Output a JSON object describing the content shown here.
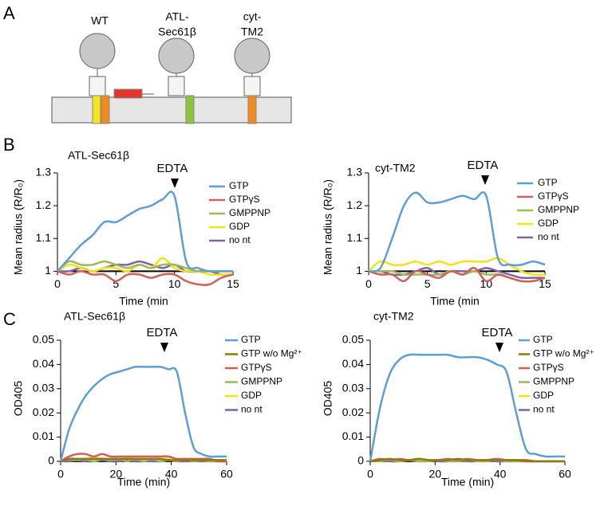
{
  "panel_labels": [
    "A",
    "B",
    "C"
  ],
  "diagram": {
    "labels": [
      [
        "WT"
      ],
      [
        "ATL-",
        "Sec61β"
      ],
      [
        "cyt-",
        "TM2"
      ]
    ]
  },
  "chart_data": [
    {
      "type": "line",
      "title": "ATL-Sec61β",
      "annotation": "EDTA",
      "xlabel": "Time (min",
      "ylabel": "Mean radius (R/R₀)",
      "x": [
        0,
        1,
        2,
        3,
        4,
        5,
        6,
        7,
        8,
        9,
        10,
        11,
        12,
        13,
        14,
        15
      ],
      "xlim": [
        0,
        15
      ],
      "xticks": [
        0,
        5,
        10,
        15
      ],
      "ylim": [
        0.95,
        1.3
      ],
      "yticks": [
        1,
        1.1,
        1.2,
        1.3
      ],
      "series": [
        {
          "name": "GTP",
          "color": "#5f9ed1",
          "values": [
            1,
            1.04,
            1.08,
            1.11,
            1.15,
            1.15,
            1.17,
            1.19,
            1.2,
            1.22,
            1.23,
            1.03,
            1.01,
            1,
            1,
            1
          ]
        },
        {
          "name": "GTPγS",
          "color": "#d0605a",
          "values": [
            1,
            0.99,
            1,
            0.99,
            0.99,
            0.97,
            0.99,
            0.99,
            0.98,
            0.99,
            0.99,
            0.97,
            0.96,
            0.96,
            0.98,
            0.99
          ]
        },
        {
          "name": "GMPPNP",
          "color": "#9bbb59",
          "values": [
            1,
            1.03,
            1.02,
            1.02,
            1.03,
            1.02,
            1.01,
            1.02,
            1.01,
            1.02,
            1.02,
            1.01,
            1,
            1,
            1,
            1
          ]
        },
        {
          "name": "GDP",
          "color": "#f2e21a",
          "values": [
            1,
            1.02,
            1.01,
            1,
            1.01,
            1.01,
            1,
            1.02,
            1.01,
            1.04,
            1.01,
            1,
            1,
            0.99,
            0.99,
            0.99
          ]
        },
        {
          "name": "no nt",
          "color": "#8064a2",
          "values": [
            1,
            1,
            1.01,
            1,
            1.01,
            1.02,
            1.02,
            1.03,
            1.02,
            1.01,
            1.02,
            1,
            1,
            1,
            0.99,
            0.99
          ]
        }
      ]
    },
    {
      "type": "line",
      "title": "cyt-TM2",
      "annotation": "EDTA",
      "xlabel": "Time (min",
      "ylabel": "Mean radius (R/R₀)",
      "x": [
        0,
        1,
        2,
        3,
        4,
        5,
        6,
        7,
        8,
        9,
        10,
        11,
        12,
        13,
        14,
        15
      ],
      "xlim": [
        0,
        15
      ],
      "xticks": [
        0,
        5,
        10,
        15
      ],
      "ylim": [
        0.95,
        1.3
      ],
      "yticks": [
        1,
        1.1,
        1.2,
        1.3
      ],
      "series": [
        {
          "name": "GTP",
          "color": "#5f9ed1",
          "values": [
            1,
            1.01,
            1.1,
            1.2,
            1.24,
            1.21,
            1.21,
            1.22,
            1.23,
            1.22,
            1.23,
            1.04,
            1.02,
            1.02,
            1.03,
            1.02
          ]
        },
        {
          "name": "GTPγS",
          "color": "#d0605a",
          "values": [
            1,
            0.99,
            0.99,
            0.97,
            1,
            0.99,
            0.98,
            1,
            0.99,
            1.01,
            0.97,
            0.99,
            0.98,
            0.97,
            0.97,
            0.98
          ]
        },
        {
          "name": "GMPPNP",
          "color": "#9bbb59",
          "values": [
            1,
            1,
            1,
            0.99,
            0.99,
            0.99,
            0.99,
            1,
            0.99,
            1,
            0.99,
            0.99,
            0.98,
            0.97,
            0.97,
            0.98
          ]
        },
        {
          "name": "GDP",
          "color": "#f2e21a",
          "values": [
            1,
            1.03,
            1.02,
            1.02,
            1.03,
            1.02,
            1.03,
            1.02,
            1.03,
            1.03,
            1.03,
            1.04,
            1.02,
            1,
            0.99,
            0.99
          ]
        },
        {
          "name": "no nt",
          "color": "#8064a2",
          "values": [
            1,
            1,
            0.99,
            0.99,
            1,
            1.01,
            0.99,
            1,
            1,
            1,
            1.01,
            1,
            0.99,
            0.98,
            0.98,
            0.98
          ]
        }
      ]
    },
    {
      "type": "line",
      "title": "ATL-Sec61β",
      "annotation": "EDTA",
      "xlabel": "Time (min)",
      "ylabel": "OD405",
      "x": [
        0,
        3,
        6,
        9,
        12,
        15,
        18,
        21,
        24,
        27,
        30,
        33,
        36,
        39,
        42,
        45,
        48,
        51,
        54,
        57,
        60
      ],
      "xlim": [
        0,
        60
      ],
      "xticks": [
        0,
        20,
        40,
        60
      ],
      "ylim": [
        -0.002,
        0.05
      ],
      "yticks": [
        0,
        0.01,
        0.02,
        0.03,
        0.04,
        0.05
      ],
      "series": [
        {
          "name": "GTP",
          "color": "#5f9ed1",
          "values": [
            0,
            0.013,
            0.021,
            0.027,
            0.031,
            0.034,
            0.036,
            0.037,
            0.038,
            0.039,
            0.039,
            0.039,
            0.039,
            0.038,
            0.037,
            0.02,
            0.006,
            0.003,
            0.002,
            0.002,
            0.002
          ]
        },
        {
          "name": "GTP w/o Mg²⁺",
          "color": "#8a7a10",
          "values": [
            0,
            0.001,
            0.001,
            0.001,
            0.001,
            0.001,
            0.001,
            0.001,
            0.001,
            0.001,
            0.001,
            0.001,
            0.001,
            0.0005,
            0.0005,
            0.0005,
            0.0005,
            0.0005,
            0.0005,
            0.0005,
            0.0005
          ]
        },
        {
          "name": "GTPγS",
          "color": "#d0605a",
          "values": [
            0,
            0.002,
            0.003,
            0.003,
            0.002,
            0.003,
            0.002,
            0.002,
            0.002,
            0.002,
            0.002,
            0.002,
            0.002,
            0.002,
            0.001,
            0.001,
            0.001,
            0.001,
            0.001,
            0,
            0
          ]
        },
        {
          "name": "GMPPNP",
          "color": "#9bbb59",
          "values": [
            0,
            0.001,
            0.0005,
            0.001,
            0,
            0.001,
            0.0005,
            0.001,
            0,
            0.001,
            0,
            0.001,
            0,
            0.0005,
            0,
            0.001,
            0,
            0.0005,
            0,
            0,
            0
          ]
        },
        {
          "name": "GDP",
          "color": "#f2e21a",
          "values": [
            0,
            0.001,
            0.001,
            0.001,
            0.0015,
            0.001,
            0.001,
            0.001,
            0.0015,
            0.001,
            0.001,
            0.001,
            0.001,
            0.001,
            0.001,
            0.001,
            0.001,
            0.0005,
            0.0005,
            0.0005,
            0.0005
          ]
        },
        {
          "name": "no nt",
          "color": "#8064a2",
          "values": [
            0,
            0,
            0.0005,
            0,
            0,
            0.0005,
            0,
            0,
            0.0005,
            0,
            0,
            0,
            0,
            0.0005,
            0,
            0,
            0,
            0,
            0,
            0,
            0
          ]
        }
      ]
    },
    {
      "type": "line",
      "title": "cyt-TM2",
      "annotation": "EDTA",
      "xlabel": "Time (min)",
      "ylabel": "OD405",
      "x": [
        0,
        3,
        6,
        9,
        12,
        15,
        18,
        21,
        24,
        27,
        30,
        33,
        36,
        39,
        42,
        45,
        48,
        51,
        54,
        57,
        60
      ],
      "xlim": [
        0,
        60
      ],
      "xticks": [
        0,
        20,
        40,
        60
      ],
      "ylim": [
        -0.002,
        0.05
      ],
      "yticks": [
        0,
        0.01,
        0.02,
        0.03,
        0.04,
        0.05
      ],
      "series": [
        {
          "name": "GTP",
          "color": "#5f9ed1",
          "values": [
            0,
            0.022,
            0.036,
            0.042,
            0.044,
            0.044,
            0.044,
            0.044,
            0.044,
            0.043,
            0.043,
            0.043,
            0.042,
            0.04,
            0.037,
            0.02,
            0.005,
            0.003,
            0.002,
            0.002,
            0.002
          ]
        },
        {
          "name": "GTP w/o Mg²⁺",
          "color": "#8a7a10",
          "values": [
            0,
            0.0005,
            0.001,
            0.0005,
            0.0005,
            0.001,
            0.0005,
            0.0005,
            0.0005,
            0.001,
            0.0005,
            0.0005,
            0.0005,
            0.0005,
            0.0005,
            0.0005,
            0,
            0,
            0,
            0,
            0
          ]
        },
        {
          "name": "GTPγS",
          "color": "#d0605a",
          "values": [
            0,
            0.001,
            0.0005,
            0.001,
            0.0005,
            0.001,
            0.0005,
            0.0005,
            0.001,
            0.0005,
            0.001,
            0.0005,
            0.0005,
            0.001,
            0.0005,
            0.0005,
            0.0005,
            0,
            0,
            0,
            0
          ]
        },
        {
          "name": "GMPPNP",
          "color": "#9bbb59",
          "values": [
            0,
            0,
            0.0005,
            0,
            0.0005,
            0,
            0,
            0.0005,
            0,
            0,
            0.0005,
            0,
            0,
            0.0005,
            0,
            0,
            0,
            0,
            0,
            0,
            0
          ]
        },
        {
          "name": "GDP",
          "color": "#f2e21a",
          "values": [
            0,
            0.0005,
            0.0005,
            0.0005,
            0.0005,
            0.0005,
            0.0005,
            0.0005,
            0.0005,
            0.0005,
            0.0005,
            0.0005,
            0.0005,
            0.0005,
            0.0005,
            0.0005,
            0.0005,
            0,
            0,
            0,
            0
          ]
        },
        {
          "name": "no nt",
          "color": "#8064a2",
          "values": [
            0,
            0.0005,
            0,
            0,
            0.0005,
            0,
            0.0005,
            0,
            0,
            0.0005,
            0,
            0,
            0.0005,
            0,
            0,
            0,
            0,
            0,
            0,
            0,
            0
          ]
        }
      ]
    }
  ]
}
